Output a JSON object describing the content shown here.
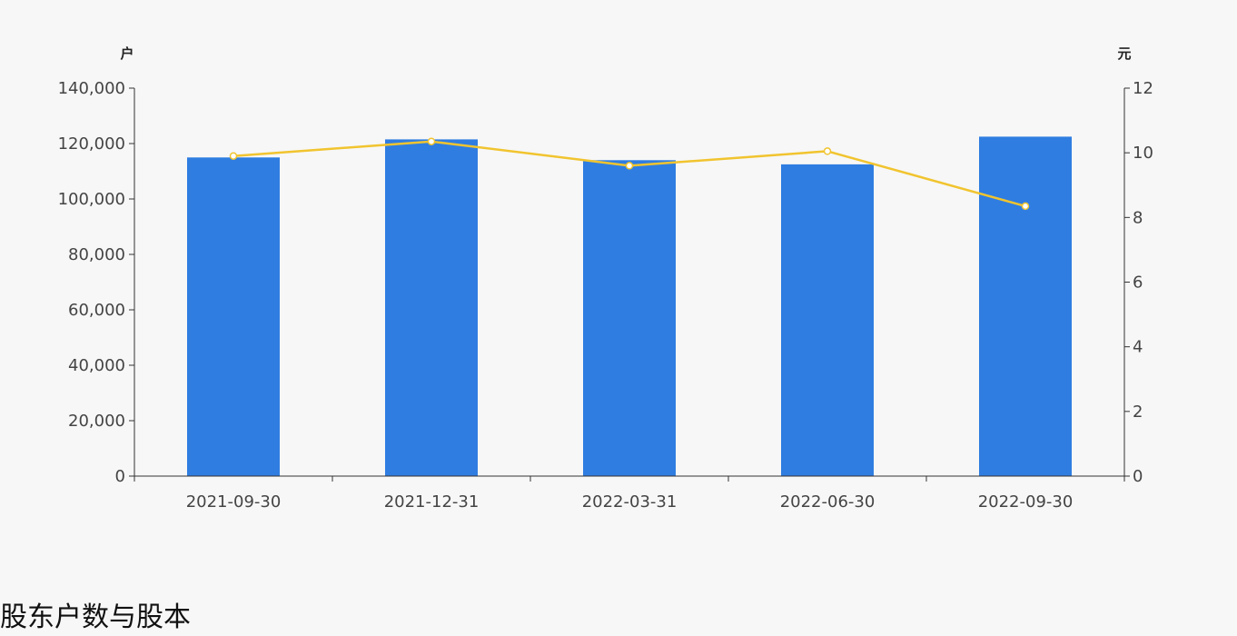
{
  "section_title": "股东户数与股本",
  "colors": {
    "bar": "#2f7de1",
    "line": "#f1c42f",
    "point": "#ffffff",
    "axis": "#333333",
    "text": "#444444"
  },
  "chart_data": {
    "type": "bar",
    "categories": [
      "2021-09-30",
      "2021-12-31",
      "2022-03-31",
      "2022-06-30",
      "2022-09-30"
    ],
    "series": [
      {
        "type": "bar",
        "axis": "left",
        "values": [
          115000,
          121500,
          114000,
          112500,
          122500
        ]
      },
      {
        "type": "line",
        "axis": "right",
        "values": [
          9.9,
          10.35,
          9.6,
          10.05,
          8.35
        ]
      }
    ],
    "y_left": {
      "unit": "户",
      "ylim": [
        0,
        140000
      ],
      "ticks": [
        0,
        20000,
        40000,
        60000,
        80000,
        100000,
        120000,
        140000
      ],
      "tick_labels": [
        "0",
        "20,000",
        "40,000",
        "60,000",
        "80,000",
        "100,000",
        "120,000",
        "140,000"
      ]
    },
    "y_right": {
      "unit": "元",
      "ylim": [
        0,
        12
      ],
      "ticks": [
        0,
        2,
        4,
        6,
        8,
        10,
        12
      ],
      "tick_labels": [
        "0",
        "2",
        "4",
        "6",
        "8",
        "10",
        "12"
      ]
    },
    "grid": false,
    "legend": "none"
  }
}
